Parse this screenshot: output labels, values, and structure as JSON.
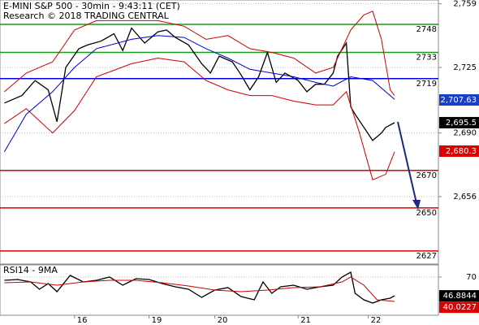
{
  "chart_data": [
    {
      "type": "line",
      "title": "E-MINI S&P 500 - 30min - 9:43:11 (CET)",
      "subtitle": "Research © 2018 TRADING CENTRAL",
      "xlim": [
        0,
        100
      ],
      "xticks": [
        {
          "value": 17,
          "label": "16"
        },
        {
          "value": 34,
          "label": "19"
        },
        {
          "value": 49,
          "label": "20"
        },
        {
          "value": 68,
          "label": "21"
        },
        {
          "value": 84,
          "label": "22"
        }
      ],
      "ylim": [
        2620,
        2761
      ],
      "yticks": [
        {
          "value": 2759,
          "label": "2,759"
        },
        {
          "value": 2725,
          "label": "2,725"
        },
        {
          "value": 2690,
          "label": "2,690"
        },
        {
          "value": 2656,
          "label": "2,656"
        }
      ],
      "grid": true,
      "series": [
        {
          "color": "#000000",
          "x": [
            1,
            5,
            8,
            11,
            13,
            15,
            18,
            20,
            23,
            26,
            28,
            30,
            33,
            36,
            38,
            40,
            43,
            46,
            48,
            50,
            53,
            55,
            57,
            59,
            61,
            63,
            65,
            68,
            70,
            72,
            74,
            76,
            77,
            79,
            80,
            81,
            83,
            85,
            87,
            88,
            90
          ],
          "values": [
            2706,
            2710,
            2718,
            2713,
            2696,
            2725,
            2735,
            2737,
            2739,
            2743,
            2734,
            2746,
            2738,
            2744,
            2745,
            2741,
            2737,
            2727,
            2722,
            2731,
            2728,
            2721,
            2713,
            2720,
            2733,
            2717,
            2722,
            2718,
            2712,
            2716,
            2716,
            2722,
            2731,
            2738,
            2704,
            2700,
            2693,
            2686,
            2690,
            2693,
            2695.5
          ]
        },
        {
          "color": "#cc0000",
          "x": [
            1,
            6,
            12,
            17,
            22,
            30,
            36,
            42,
            47,
            52,
            57,
            62,
            67,
            72,
            76,
            80,
            83,
            85,
            87,
            89,
            90
          ],
          "values": [
            2712,
            2722,
            2728,
            2745,
            2750,
            2750,
            2750,
            2747,
            2740,
            2742,
            2735,
            2733,
            2730,
            2722,
            2725,
            2745,
            2753,
            2755,
            2740,
            2713,
            2710
          ]
        },
        {
          "color": "#cc0000",
          "x": [
            1,
            6,
            12,
            17,
            22,
            30,
            36,
            42,
            47,
            52,
            57,
            62,
            67,
            72,
            76,
            79,
            82,
            85,
            88,
            90
          ],
          "values": [
            2695,
            2703,
            2690,
            2702,
            2720,
            2727,
            2730,
            2728,
            2718,
            2713,
            2710,
            2710,
            2707,
            2705,
            2705,
            2712,
            2690,
            2665,
            2668,
            2680
          ]
        },
        {
          "color": "#0000cc",
          "x": [
            1,
            6,
            12,
            17,
            22,
            30,
            36,
            42,
            47,
            52,
            57,
            62,
            67,
            72,
            76,
            80,
            85,
            90
          ],
          "values": [
            2680,
            2700,
            2712,
            2725,
            2735,
            2740,
            2742,
            2741,
            2735,
            2730,
            2724,
            2722,
            2720,
            2717,
            2715,
            2720,
            2718,
            2708
          ]
        }
      ],
      "levels": [
        {
          "value": 2748,
          "color": "#1a9a1a"
        },
        {
          "value": 2733,
          "color": "#1a9a1a"
        },
        {
          "value": 2719,
          "color": "#0000dd"
        },
        {
          "value": 2670,
          "color": "#dd0000"
        },
        {
          "value": 2650,
          "color": "#dd0000"
        },
        {
          "value": 2627,
          "color": "#dd0000"
        }
      ],
      "price_labels": [
        {
          "value": 2707.63,
          "label": "2,707.63",
          "color": "#1a3fbf"
        },
        {
          "value": 2695.5,
          "label": "2,695.5",
          "color": "#000000"
        },
        {
          "value": 2680.3,
          "label": "2,680.3",
          "color": "#dd0000"
        }
      ]
    },
    {
      "type": "line",
      "title": "RSI14 - 9MA",
      "xlim": [
        0,
        100
      ],
      "ylim": [
        23,
        85
      ],
      "yticks": [
        70
      ],
      "series": [
        {
          "color": "#000000",
          "x": [
            1,
            4,
            7,
            9,
            11,
            13,
            16,
            19,
            22,
            25,
            28,
            31,
            34,
            37,
            40,
            43,
            46,
            49,
            52,
            55,
            58,
            60,
            62,
            64,
            67,
            70,
            73,
            76,
            78,
            80,
            81,
            83,
            85,
            87,
            89,
            90
          ],
          "values": [
            66,
            67,
            64,
            55,
            62,
            52,
            72,
            64,
            66,
            70,
            60,
            68,
            67,
            62,
            58,
            55,
            45,
            54,
            57,
            46,
            42,
            64,
            50,
            58,
            60,
            55,
            58,
            60,
            70,
            76,
            50,
            42,
            38,
            42,
            44,
            46.8844
          ]
        },
        {
          "color": "#cc0000",
          "x": [
            1,
            7,
            13,
            19,
            25,
            31,
            37,
            43,
            49,
            55,
            61,
            67,
            73,
            78,
            80,
            83,
            86,
            90
          ],
          "values": [
            63,
            64,
            60,
            64,
            66,
            66,
            63,
            59,
            54,
            52,
            54,
            57,
            58,
            64,
            70,
            60,
            42,
            40.0227
          ]
        }
      ],
      "value_labels": [
        "46.8844",
        "40.0227"
      ]
    }
  ]
}
